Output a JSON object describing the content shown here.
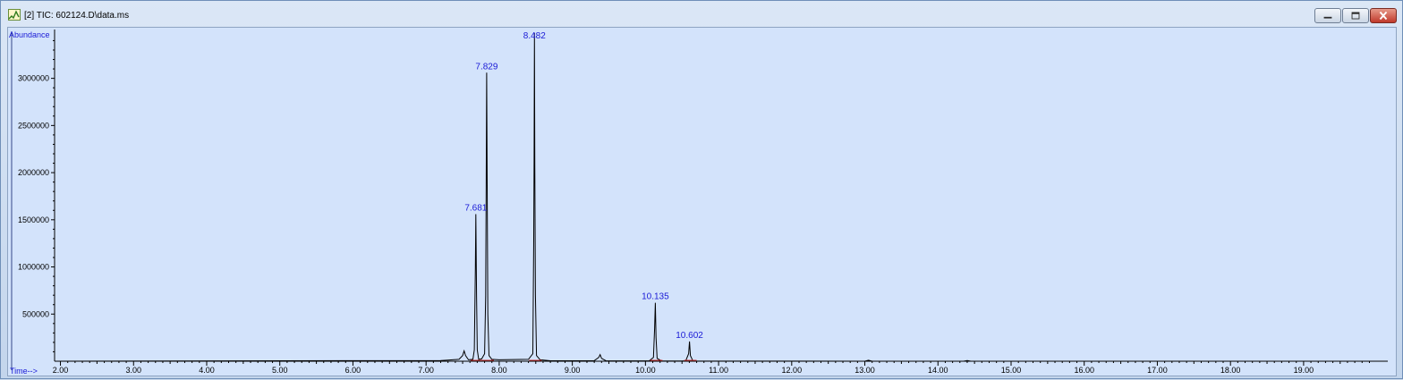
{
  "window": {
    "title": "[2] TIC: 602124.D\\data.ms",
    "icon": "chromatogram-app-icon",
    "controls": [
      "minimize-icon",
      "maximize-icon",
      "close-icon"
    ]
  },
  "colors": {
    "plot_background": "#d3e3fb",
    "trace": "#000000",
    "labels": "#1a1ad6",
    "axis": "#000000"
  },
  "chart_data": {
    "type": "line",
    "xlabel": "Time-->",
    "ylabel": "Abundance",
    "xlim": [
      1.92,
      19.98
    ],
    "ylim": [
      0,
      3480000
    ],
    "x_ticks": [
      "2.00",
      "3.00",
      "4.00",
      "5.00",
      "6.00",
      "7.00",
      "8.00",
      "9.00",
      "10.00",
      "11.00",
      "12.00",
      "13.00",
      "14.00",
      "15.00",
      "16.00",
      "17.00",
      "18.00",
      "19.00"
    ],
    "y_ticks": [
      "500000",
      "1000000",
      "1500000",
      "2000000",
      "2500000",
      "3000000"
    ],
    "peaks": [
      {
        "x": 7.52,
        "y": 110000,
        "label": ""
      },
      {
        "x": 7.681,
        "y": 1560000,
        "label": "7.681"
      },
      {
        "x": 7.829,
        "y": 3060000,
        "label": "7.829"
      },
      {
        "x": 8.482,
        "y": 3480000,
        "label": "8.482"
      },
      {
        "x": 9.38,
        "y": 70000,
        "label": ""
      },
      {
        "x": 10.135,
        "y": 620000,
        "label": "10.135"
      },
      {
        "x": 10.602,
        "y": 210000,
        "label": "10.602"
      }
    ],
    "series": [
      {
        "x": [
          1.92,
          7.2,
          7.3,
          7.45,
          7.5,
          7.52,
          7.54,
          7.58,
          7.64,
          7.66,
          7.675,
          7.681,
          7.69,
          7.7,
          7.72,
          7.76,
          7.8,
          7.815,
          7.822,
          7.829,
          7.836,
          7.845,
          7.86,
          7.9,
          8.0,
          8.4,
          8.46,
          8.472,
          8.477,
          8.482,
          8.487,
          8.495,
          8.51,
          8.56,
          8.7,
          9.3,
          9.36,
          9.38,
          9.4,
          9.46,
          10.05,
          10.11,
          10.125,
          10.135,
          10.145,
          10.16,
          10.22,
          10.55,
          10.59,
          10.602,
          10.615,
          10.65,
          13.0,
          13.05,
          13.1,
          14.35,
          14.4,
          14.45,
          19.98
        ],
        "y": [
          0,
          8000,
          12000,
          20000,
          60000,
          110000,
          60000,
          15000,
          20000,
          120000,
          1000000,
          1560000,
          700000,
          120000,
          20000,
          25000,
          80000,
          700000,
          1950000,
          3060000,
          1850000,
          500000,
          60000,
          20000,
          15000,
          20000,
          80000,
          1300000,
          2130000,
          3480000,
          2080000,
          700000,
          60000,
          15000,
          5000,
          6000,
          40000,
          70000,
          30000,
          5000,
          4000,
          40000,
          350000,
          620000,
          250000,
          30000,
          4000,
          3000,
          80000,
          210000,
          60000,
          2000,
          0,
          10000,
          0,
          0,
          8000,
          0,
          0
        ]
      }
    ]
  }
}
